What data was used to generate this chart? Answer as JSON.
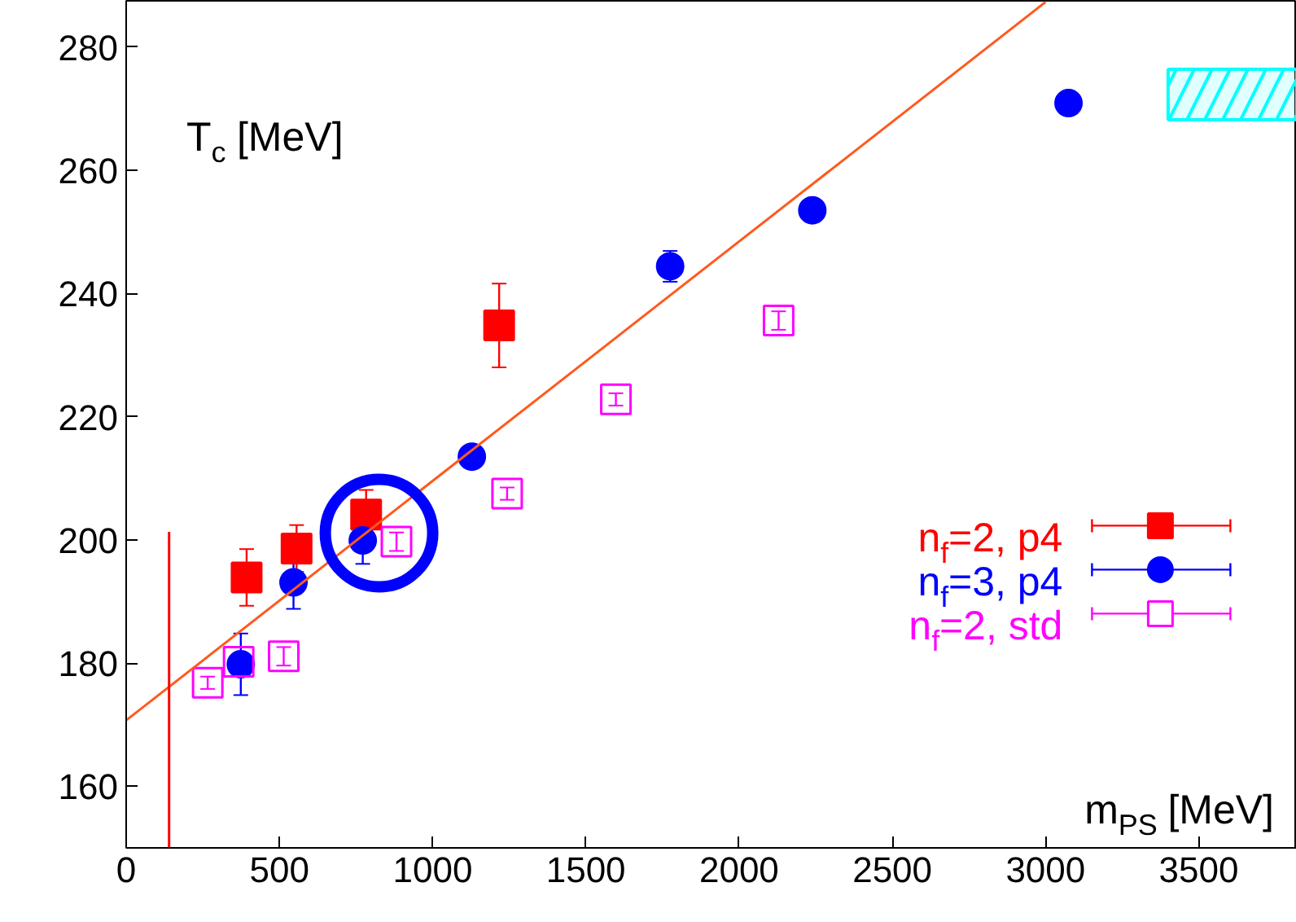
{
  "chart_data": {
    "type": "scatter",
    "xlabel": "m$_{PS}$ [MeV]",
    "ylabel": "T$_{c}$ [MeV]",
    "xlim": [
      0,
      3820
    ],
    "ylim": [
      150,
      287.5
    ],
    "xticks": [
      0,
      500,
      1000,
      1500,
      2000,
      2500,
      3000,
      3500
    ],
    "yticks": [
      160,
      180,
      200,
      220,
      240,
      260,
      280
    ],
    "grid": false,
    "legend": "right",
    "series": [
      {
        "name": "n$_{f}$=2, p4",
        "color": "#ff0000",
        "marker": "square",
        "x": [
          393,
          556,
          783,
          1217
        ],
        "values": [
          193.9,
          198.6,
          204.1,
          234.8
        ],
        "errors": [
          4.6,
          3.8,
          4,
          6.8
        ]
      },
      {
        "name": "n$_{f}$=3, p4",
        "color": "#0000ff",
        "marker": "circle",
        "x": [
          374,
          546,
          772,
          1128,
          1775,
          2239,
          3075
        ],
        "values": [
          179.8,
          193.1,
          199.9,
          213.5,
          244.4,
          253.5,
          270.9
        ],
        "errors": [
          5,
          4.3,
          3.8,
          null,
          2.5,
          1.5,
          null
        ]
      },
      {
        "name": "n$_{f}$=2, std",
        "color": "#ff00ff",
        "marker": "square_open",
        "x": [
          266,
          367,
          514,
          882,
          1243,
          1598,
          2129
        ],
        "values": [
          176.8,
          180.2,
          181.1,
          199.7,
          207.5,
          222.8,
          235.6
        ],
        "errors": [
          1,
          null,
          1.5,
          1.5,
          1,
          1,
          1.5
        ]
      },
      {
        "type": "line",
        "color": "#ff5a1e",
        "marker": "none",
        "x": [
          0,
          3000
        ],
        "values": [
          170.7,
          287.3
        ]
      },
      {
        "type": "line",
        "color": "#ff0000",
        "marker": "none",
        "x": [
          140,
          140
        ],
        "values": [
          150,
          201.3
        ]
      },
      {
        "type": "area",
        "color": "#00ffff",
        "x": [
          3400,
          3820
        ],
        "values": [
          null,
          null
        ],
        "lower": [
          268.2,
          268.2
        ],
        "upper": [
          276.4,
          276.4
        ]
      }
    ]
  }
}
